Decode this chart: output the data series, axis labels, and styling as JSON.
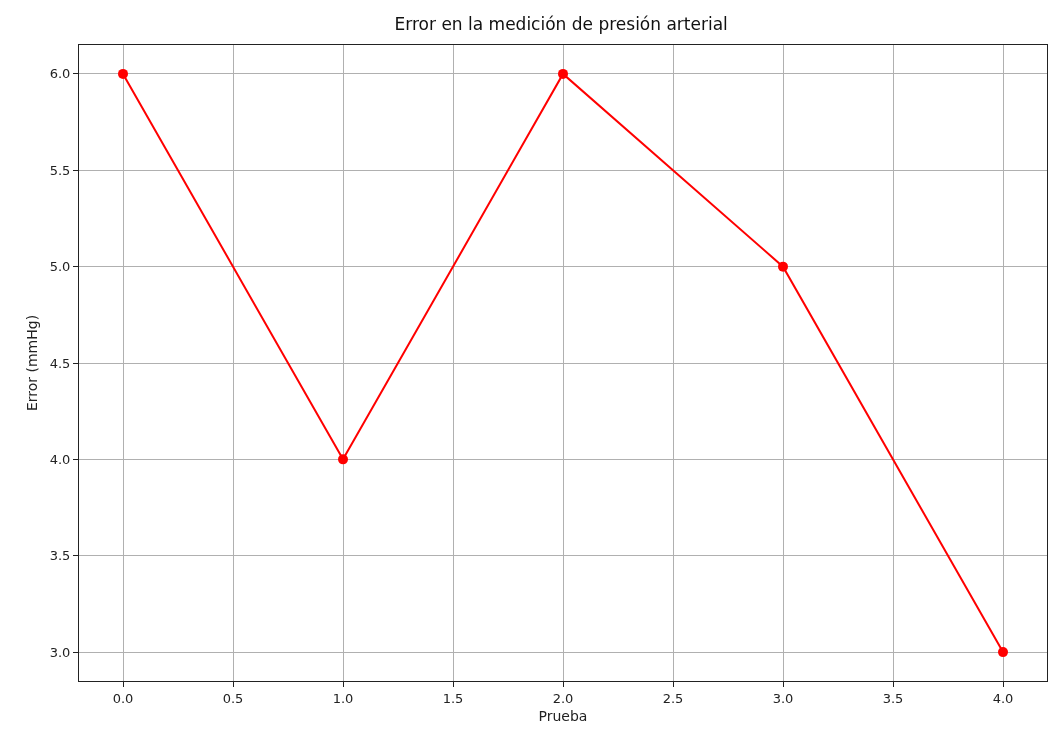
{
  "chart_data": {
    "type": "line",
    "title": "Error en la medición de presión arterial",
    "xlabel": "Prueba",
    "ylabel": "Error (mmHg)",
    "x": [
      0,
      1,
      2,
      3,
      4
    ],
    "series": [
      {
        "color": "#ff0000",
        "values": [
          6,
          4,
          6,
          5,
          3
        ]
      }
    ],
    "xlim": [
      -0.2,
      4.2
    ],
    "xticks": [
      {
        "value": 0,
        "label": "0.0"
      },
      {
        "value": 0.5,
        "label": "0.5"
      },
      {
        "value": 1,
        "label": "1.0"
      },
      {
        "value": 1.5,
        "label": "1.5"
      },
      {
        "value": 2,
        "label": "2.0"
      },
      {
        "value": 2.5,
        "label": "2.5"
      },
      {
        "value": 3,
        "label": "3.0"
      },
      {
        "value": 3.5,
        "label": "3.5"
      },
      {
        "value": 4,
        "label": "4.0"
      }
    ],
    "ylim": [
      2.85,
      6.15
    ],
    "yticks": [
      {
        "value": 3,
        "label": "3.0"
      },
      {
        "value": 3.5,
        "label": "3.5"
      },
      {
        "value": 4,
        "label": "4.0"
      },
      {
        "value": 4.5,
        "label": "4.5"
      },
      {
        "value": 5,
        "label": "5.0"
      },
      {
        "value": 5.5,
        "label": "5.5"
      },
      {
        "value": 6,
        "label": "6.0"
      }
    ],
    "grid": true,
    "marker": "circle",
    "line_style": "solid"
  }
}
